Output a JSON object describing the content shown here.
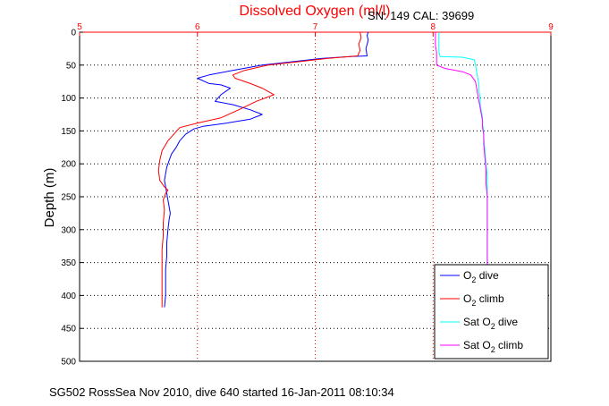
{
  "chart_data": {
    "type": "line",
    "title": "Dissolved Oxygen (ml/l)",
    "title_color": "#ff0000",
    "info_text": "SN: 149  CAL: 39699",
    "footer_text": "SG502 RossSea Nov 2010, dive 640 started 16-Jan-2011 08:10:34",
    "ylabel": "Depth (m)",
    "xlabel": "",
    "xlim": [
      5,
      9
    ],
    "ylim": [
      0,
      500
    ],
    "y_reversed": true,
    "x_axis_position": "top",
    "x_axis_color": "#ff0000",
    "xticks": [
      "5",
      "6",
      "7",
      "8",
      "9"
    ],
    "yticks": [
      "0",
      "50",
      "100",
      "150",
      "200",
      "250",
      "300",
      "350",
      "400",
      "450",
      "500"
    ],
    "grid": true,
    "legend_position": "bottom-right",
    "legend": [
      {
        "pre": "O",
        "sub": "2",
        "post": " dive",
        "color": "#0000ff"
      },
      {
        "pre": "O",
        "sub": "2",
        "post": " climb",
        "color": "#ff0000"
      },
      {
        "pre": "Sat O",
        "sub": "2",
        "post": " dive",
        "color": "#00ffff"
      },
      {
        "pre": "Sat O",
        "sub": "2",
        "post": " climb",
        "color": "#ff00ff"
      }
    ],
    "series": [
      {
        "name": "O2 dive",
        "color": "#0000ff",
        "points": [
          [
            7.45,
            0
          ],
          [
            7.44,
            5
          ],
          [
            7.45,
            12
          ],
          [
            7.43,
            25
          ],
          [
            7.44,
            36
          ],
          [
            7.3,
            37
          ],
          [
            7.05,
            40
          ],
          [
            6.8,
            45
          ],
          [
            6.55,
            50
          ],
          [
            6.3,
            58
          ],
          [
            6.1,
            65
          ],
          [
            6.0,
            70
          ],
          [
            6.1,
            78
          ],
          [
            6.2,
            80
          ],
          [
            6.28,
            85
          ],
          [
            6.2,
            95
          ],
          [
            6.15,
            105
          ],
          [
            6.3,
            110
          ],
          [
            6.45,
            118
          ],
          [
            6.55,
            125
          ],
          [
            6.45,
            132
          ],
          [
            6.25,
            138
          ],
          [
            6.05,
            143
          ],
          [
            5.97,
            147
          ],
          [
            5.9,
            155
          ],
          [
            5.85,
            165
          ],
          [
            5.82,
            175
          ],
          [
            5.78,
            185
          ],
          [
            5.76,
            195
          ],
          [
            5.74,
            205
          ],
          [
            5.73,
            215
          ],
          [
            5.72,
            225
          ],
          [
            5.73,
            235
          ],
          [
            5.74,
            245
          ],
          [
            5.75,
            255
          ],
          [
            5.76,
            265
          ],
          [
            5.77,
            275
          ],
          [
            5.76,
            285
          ],
          [
            5.75,
            300
          ],
          [
            5.74,
            320
          ],
          [
            5.74,
            340
          ],
          [
            5.73,
            360
          ],
          [
            5.73,
            380
          ],
          [
            5.73,
            400
          ],
          [
            5.72,
            418
          ]
        ]
      },
      {
        "name": "O2 climb",
        "color": "#ff0000",
        "points": [
          [
            7.38,
            0
          ],
          [
            7.39,
            8
          ],
          [
            7.37,
            18
          ],
          [
            7.38,
            28
          ],
          [
            7.36,
            36
          ],
          [
            7.1,
            40
          ],
          [
            6.85,
            45
          ],
          [
            6.6,
            50
          ],
          [
            6.4,
            58
          ],
          [
            6.3,
            65
          ],
          [
            6.32,
            70
          ],
          [
            6.45,
            78
          ],
          [
            6.55,
            85
          ],
          [
            6.65,
            95
          ],
          [
            6.5,
            105
          ],
          [
            6.35,
            118
          ],
          [
            6.2,
            130
          ],
          [
            6.0,
            138
          ],
          [
            5.85,
            145
          ],
          [
            5.8,
            155
          ],
          [
            5.75,
            165
          ],
          [
            5.7,
            180
          ],
          [
            5.68,
            195
          ],
          [
            5.67,
            210
          ],
          [
            5.68,
            225
          ],
          [
            5.72,
            235
          ],
          [
            5.75,
            240
          ],
          [
            5.73,
            245
          ],
          [
            5.71,
            255
          ],
          [
            5.72,
            270
          ],
          [
            5.71,
            290
          ],
          [
            5.71,
            310
          ],
          [
            5.7,
            330
          ],
          [
            5.7,
            350
          ],
          [
            5.7,
            370
          ],
          [
            5.7,
            390
          ],
          [
            5.7,
            410
          ],
          [
            5.7,
            418
          ]
        ]
      },
      {
        "name": "Sat O2 dive",
        "color": "#00ffff",
        "points": [
          [
            8.05,
            0
          ],
          [
            8.05,
            10
          ],
          [
            8.05,
            20
          ],
          [
            8.05,
            30
          ],
          [
            8.06,
            37
          ],
          [
            8.25,
            38
          ],
          [
            8.35,
            42
          ],
          [
            8.36,
            50
          ],
          [
            8.37,
            60
          ],
          [
            8.38,
            70
          ],
          [
            8.39,
            80
          ],
          [
            8.39,
            90
          ],
          [
            8.4,
            100
          ],
          [
            8.4,
            110
          ],
          [
            8.41,
            120
          ],
          [
            8.42,
            130
          ],
          [
            8.42,
            140
          ],
          [
            8.43,
            150
          ],
          [
            8.43,
            160
          ],
          [
            8.44,
            180
          ],
          [
            8.45,
            200
          ],
          [
            8.46,
            220
          ],
          [
            8.46,
            240
          ],
          [
            8.46,
            260
          ],
          [
            8.46,
            280
          ],
          [
            8.46,
            300
          ],
          [
            8.46,
            320
          ],
          [
            8.46,
            340
          ],
          [
            8.46,
            355
          ]
        ]
      },
      {
        "name": "Sat O2 climb",
        "color": "#ff00ff",
        "points": [
          [
            8.02,
            0
          ],
          [
            8.02,
            10
          ],
          [
            8.02,
            20
          ],
          [
            8.03,
            30
          ],
          [
            8.03,
            40
          ],
          [
            8.03,
            50
          ],
          [
            8.1,
            55
          ],
          [
            8.25,
            60
          ],
          [
            8.32,
            65
          ],
          [
            8.36,
            75
          ],
          [
            8.37,
            85
          ],
          [
            8.38,
            95
          ],
          [
            8.39,
            105
          ],
          [
            8.4,
            115
          ],
          [
            8.41,
            125
          ],
          [
            8.42,
            135
          ],
          [
            8.42,
            145
          ],
          [
            8.43,
            155
          ],
          [
            8.43,
            170
          ],
          [
            8.44,
            190
          ],
          [
            8.45,
            210
          ],
          [
            8.45,
            230
          ],
          [
            8.46,
            250
          ],
          [
            8.46,
            270
          ],
          [
            8.46,
            290
          ],
          [
            8.46,
            310
          ],
          [
            8.46,
            330
          ],
          [
            8.46,
            355
          ]
        ]
      }
    ]
  }
}
